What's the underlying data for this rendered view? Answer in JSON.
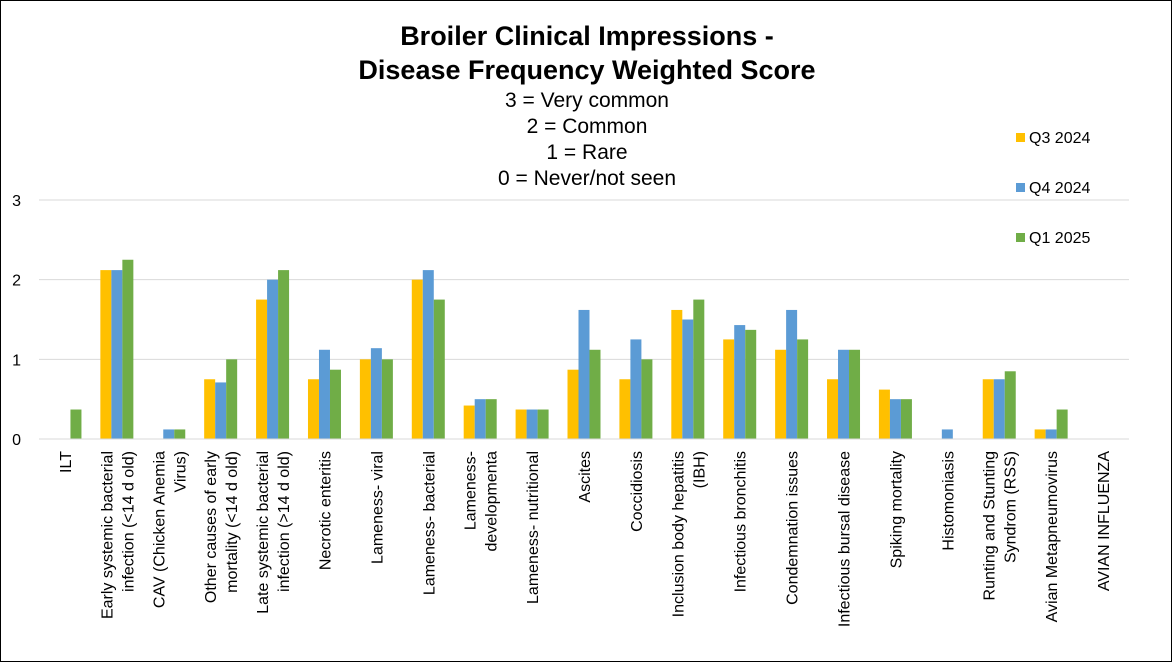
{
  "chart_data": {
    "type": "bar",
    "title": [
      "Broiler Clinical Impressions -",
      "Disease Frequency Weighted Score"
    ],
    "subtitle": [
      "3 = Very common",
      "2 = Common",
      "1 = Rare",
      "0 = Never/not seen"
    ],
    "xlabel": "",
    "ylabel": "",
    "ylim": [
      0,
      3
    ],
    "yticks": [
      "0",
      "1",
      "2",
      "3"
    ],
    "grid": true,
    "legend_position": "right",
    "categories": [
      [
        "ILT"
      ],
      [
        "Early systemic bacterial",
        "infection (<14 d old)"
      ],
      [
        "CAV (Chicken Anemia",
        "Virus)"
      ],
      [
        "Other causes of early",
        "mortality (<14 d old)"
      ],
      [
        "Late systemic bacterial",
        "infection (>14 d old)"
      ],
      [
        "Necrotic enteritis"
      ],
      [
        "Lameness- viral"
      ],
      [
        "Lameness- bacterial"
      ],
      [
        "Lameness-",
        "developmenta"
      ],
      [
        "Lameness- nutritional"
      ],
      [
        "Ascites"
      ],
      [
        "Coccidiosis"
      ],
      [
        "Inclusion body hepatitis",
        "(IBH)"
      ],
      [
        "Infectious bronchitis"
      ],
      [
        "Condemnation issues"
      ],
      [
        "Infectious bursal disease"
      ],
      [
        "Spiking mortality"
      ],
      [
        "Histomoniasis"
      ],
      [
        "Runting and Stunting",
        "Syndrom (RSS)"
      ],
      [
        "Avian Metapneumovirus"
      ],
      [
        "AVIAN INFLUENZA"
      ]
    ],
    "series": [
      {
        "name": "Q3 2024",
        "color": "#FFC000",
        "values": [
          0,
          2.12,
          0,
          0.75,
          1.75,
          0.75,
          1.0,
          2.0,
          0.42,
          0.37,
          0.87,
          0.75,
          1.62,
          1.25,
          1.12,
          0.75,
          0.62,
          0,
          0.75,
          0.12,
          0
        ]
      },
      {
        "name": "Q4 2024",
        "color": "#5B9BD5",
        "values": [
          0,
          2.12,
          0.12,
          0.71,
          2.0,
          1.12,
          1.14,
          2.12,
          0.5,
          0.37,
          1.62,
          1.25,
          1.5,
          1.43,
          1.62,
          1.12,
          0.5,
          0.12,
          0.75,
          0.12,
          0
        ]
      },
      {
        "name": "Q1 2025",
        "color": "#70AD47",
        "values": [
          0.37,
          2.25,
          0.12,
          1.0,
          2.12,
          0.87,
          1.0,
          1.75,
          0.5,
          0.37,
          1.12,
          1.0,
          1.75,
          1.37,
          1.25,
          1.12,
          0.5,
          0,
          0.85,
          0.37,
          0
        ]
      }
    ]
  }
}
